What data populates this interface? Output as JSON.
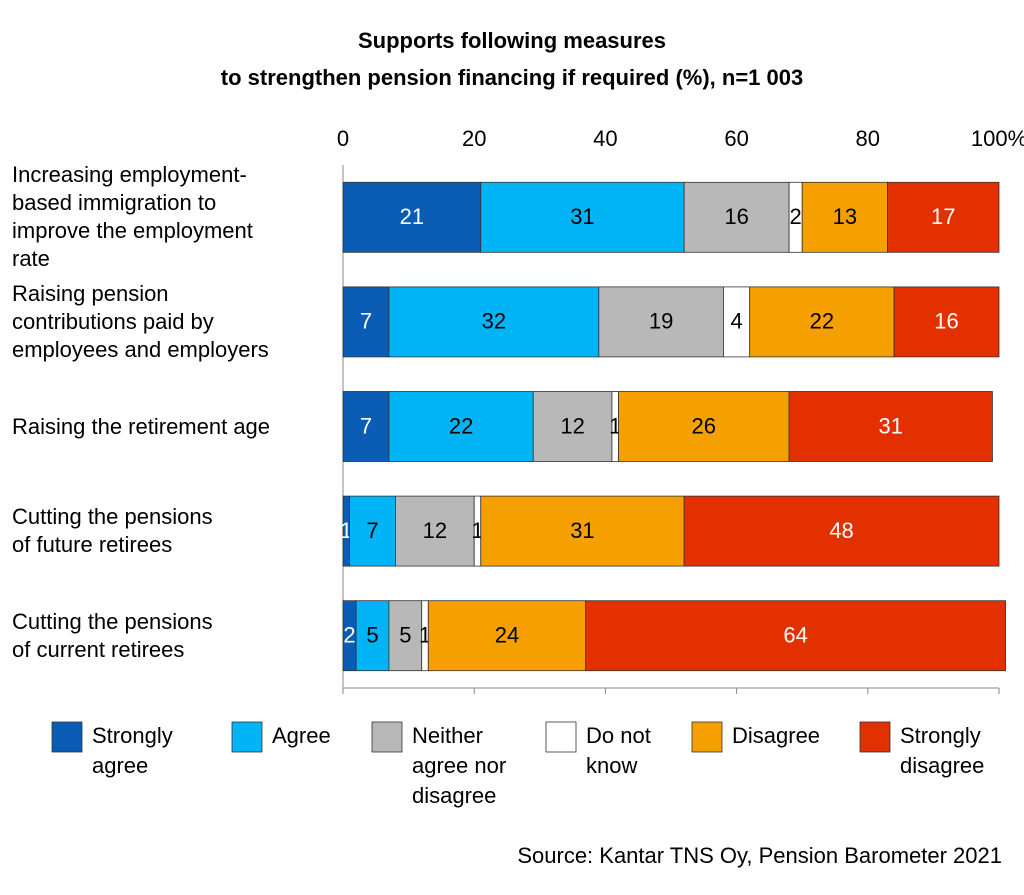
{
  "chart_data": {
    "type": "stacked-bar",
    "orientation": "horizontal",
    "title": "Supports following measures\nto strengthen pension financing if required (%), n=1 003",
    "categories": [
      "Increasing employment-\nbased immigration to\nimprove the employment\nrate",
      "Raising pension\ncontributions paid by\nemployees and employers",
      "Raising the retirement age",
      "Cutting the pensions\nof future retirees",
      "Cutting the pensions\nof current retirees"
    ],
    "series": [
      {
        "name": "Strongly\nagree",
        "color": "#0b5cb5",
        "label_color": "#ffffff",
        "values": [
          21,
          7,
          7,
          1,
          2
        ]
      },
      {
        "name": "Agree",
        "color": "#00b4f5",
        "label_color": "#000000",
        "values": [
          31,
          32,
          22,
          7,
          5
        ]
      },
      {
        "name": "Neither\nagree nor\ndisagree",
        "color": "#b8b8b8",
        "label_color": "#000000",
        "values": [
          16,
          19,
          12,
          12,
          5
        ]
      },
      {
        "name": "Do not\nknow",
        "color": "#ffffff",
        "label_color": "#000000",
        "values": [
          2,
          4,
          1,
          1,
          1
        ]
      },
      {
        "name": "Disagree",
        "color": "#f5a000",
        "label_color": "#000000",
        "values": [
          13,
          22,
          26,
          31,
          24
        ]
      },
      {
        "name": "Strongly\ndisagree",
        "color": "#e33000",
        "label_color": "#ffffff",
        "values": [
          17,
          16,
          31,
          48,
          64
        ]
      }
    ],
    "xlim": [
      0,
      100
    ],
    "xticks": [
      0,
      20,
      40,
      60,
      80,
      {
        "value": 100,
        "label": "100%"
      }
    ],
    "grid": false,
    "source": "Source: Kantar TNS Oy, Pension Barometer 2021"
  }
}
